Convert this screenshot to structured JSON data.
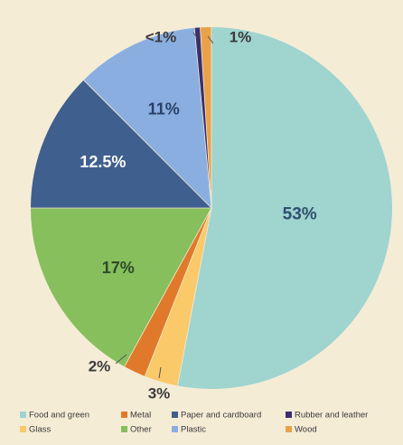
{
  "chart_data": {
    "type": "pie",
    "start_angle_deg": 0,
    "direction": "clockwise",
    "slices": [
      {
        "name": "Food and green",
        "value": 53,
        "label": "53%",
        "color": "#9fd4cf",
        "label_color": "#2f4f6e"
      },
      {
        "name": "Glass",
        "value": 3,
        "label": "3%",
        "color": "#f9c96a",
        "label_color": "#3a3a3a"
      },
      {
        "name": "Metal",
        "value": 2,
        "label": "2%",
        "color": "#e07a2a",
        "label_color": "#3a3a3a"
      },
      {
        "name": "Other",
        "value": 17,
        "label": "17%",
        "color": "#86bf5c",
        "label_color": "#2e4a2a"
      },
      {
        "name": "Paper and cardboard",
        "value": 12.5,
        "label": "12.5%",
        "color": "#3f5f8e",
        "label_color": "#ffffff"
      },
      {
        "name": "Plastic",
        "value": 11,
        "label": "11%",
        "color": "#8aaee0",
        "label_color": "#2a3f66"
      },
      {
        "name": "Rubber and leather",
        "value": 0.5,
        "label": "<1%",
        "color": "#3a2f6e",
        "label_color": "#3a3a3a"
      },
      {
        "name": "Wood",
        "value": 1,
        "label": "1%",
        "color": "#e9a24a",
        "label_color": "#3a3a3a"
      }
    ],
    "legend": [
      {
        "name": "Food and green",
        "color": "#9fd4cf"
      },
      {
        "name": "Metal",
        "color": "#e07a2a"
      },
      {
        "name": "Paper and cardboard",
        "color": "#3f5f8e"
      },
      {
        "name": "Rubber and leather",
        "color": "#3a2f6e"
      },
      {
        "name": "Glass",
        "color": "#f9c96a"
      },
      {
        "name": "Other",
        "color": "#86bf5c"
      },
      {
        "name": "Plastic",
        "color": "#8aaee0"
      },
      {
        "name": "Wood",
        "color": "#e9a24a"
      }
    ],
    "legend_position": "bottom"
  }
}
